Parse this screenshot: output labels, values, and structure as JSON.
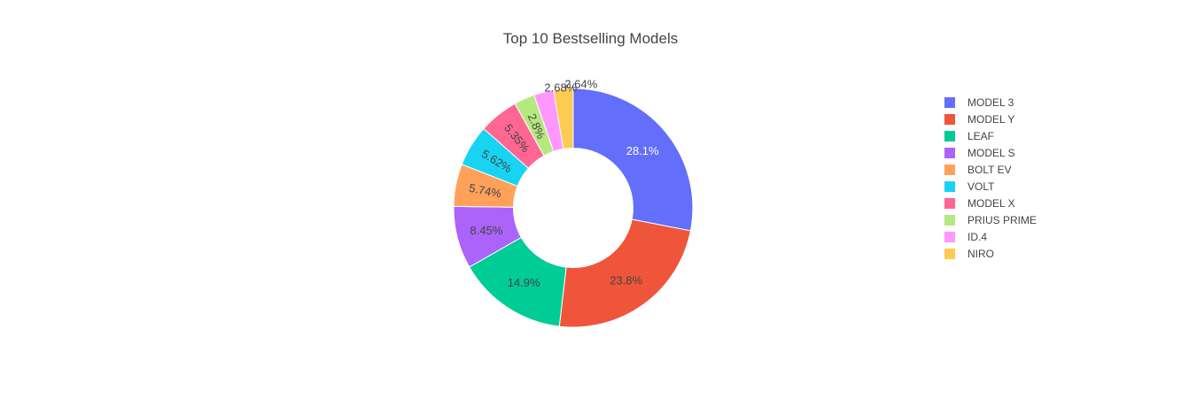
{
  "chart_data": {
    "type": "pie",
    "title": "Top 10 Bestselling Models",
    "hole": 0.5,
    "categories": [
      "MODEL 3",
      "MODEL Y",
      "LEAF",
      "MODEL S",
      "BOLT EV",
      "VOLT",
      "MODEL X",
      "PRIUS PRIME",
      "ID.4",
      "NIRO"
    ],
    "values": [
      28.1,
      23.8,
      14.9,
      8.45,
      5.74,
      5.62,
      5.35,
      2.8,
      2.68,
      2.64
    ],
    "labels": [
      "28.1%",
      "23.8%",
      "14.9%",
      "8.45%",
      "5.74%",
      "5.62%",
      "5.35%",
      "2.8%",
      "2.68%",
      "2.64%"
    ],
    "colors": [
      "#636efa",
      "#ef553b",
      "#00cc96",
      "#ab63fa",
      "#ffa15a",
      "#19d3f3",
      "#ff6692",
      "#b6e880",
      "#ff97ff",
      "#fecb52"
    ],
    "legend_position": "right"
  }
}
